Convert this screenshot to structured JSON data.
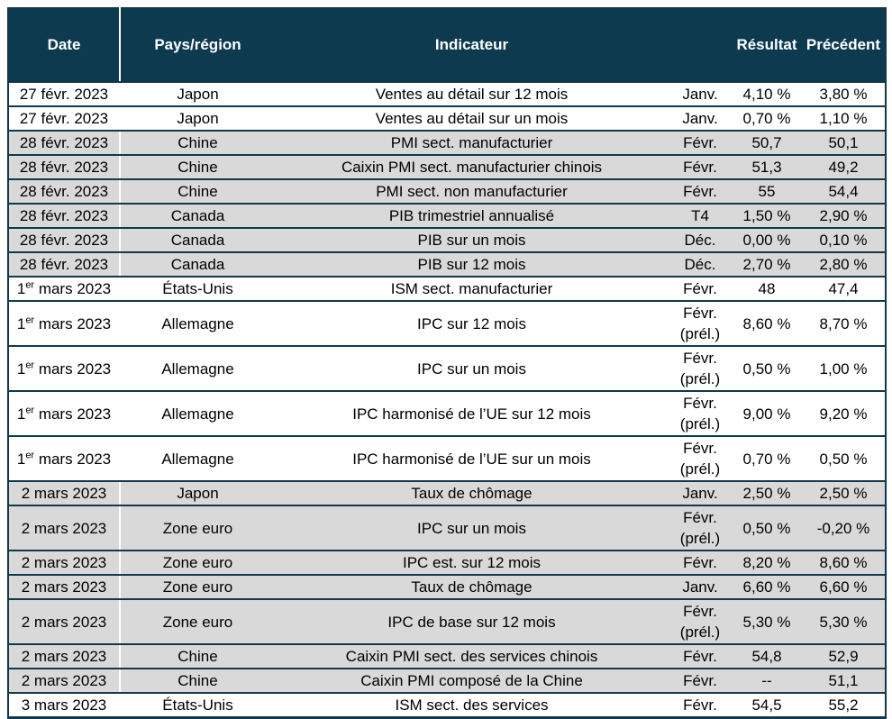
{
  "colors": {
    "header_bg": "#0e3a50",
    "grid_border": "#12384d",
    "row_shade_gray": "#d9d9d9",
    "row_shade_white": "#ffffff",
    "header_text": "#ffffff",
    "body_text": "#000000",
    "date_column_divider": "#ffffff"
  },
  "table": {
    "headers": {
      "date": "Date",
      "region": "Pays/région",
      "indicator": "Indicateur",
      "period": "",
      "result": "Résultat",
      "previous": "Précédent"
    },
    "rows": [
      {
        "date": "27 févr. 2023",
        "date_sup": "",
        "date_rest": "",
        "region": "Japon",
        "indicator": "Ventes au détail sur 12 mois",
        "period": "Janv.",
        "result": "4,10 %",
        "previous": "3,80 %",
        "shade": "white"
      },
      {
        "date": "27 févr. 2023",
        "date_sup": "",
        "date_rest": "",
        "region": "Japon",
        "indicator": "Ventes au détail sur un mois",
        "period": "Janv.",
        "result": "0,70 %",
        "previous": "1,10 %",
        "shade": "white"
      },
      {
        "date": "28 févr. 2023",
        "date_sup": "",
        "date_rest": "",
        "region": "Chine",
        "indicator": "PMI sect. manufacturier",
        "period": "Févr.",
        "result": "50,7",
        "previous": "50,1",
        "shade": "gray"
      },
      {
        "date": "28 févr. 2023",
        "date_sup": "",
        "date_rest": "",
        "region": "Chine",
        "indicator": "Caixin PMI sect. manufacturier chinois",
        "period": "Févr.",
        "result": "51,3",
        "previous": "49,2",
        "shade": "gray"
      },
      {
        "date": "28 févr. 2023",
        "date_sup": "",
        "date_rest": "",
        "region": "Chine",
        "indicator": "PMI sect. non manufacturier",
        "period": "Févr.",
        "result": "55",
        "previous": "54,4",
        "shade": "gray"
      },
      {
        "date": "28 févr. 2023",
        "date_sup": "",
        "date_rest": "",
        "region": "Canada",
        "indicator": "PIB trimestriel annualisé",
        "period": "T4",
        "result": "1,50 %",
        "previous": "2,90 %",
        "shade": "gray"
      },
      {
        "date": "28 févr. 2023",
        "date_sup": "",
        "date_rest": "",
        "region": "Canada",
        "indicator": "PIB sur un mois",
        "period": "Déc.",
        "result": "0,00 %",
        "previous": "0,10 %",
        "shade": "gray"
      },
      {
        "date": "28 févr. 2023",
        "date_sup": "",
        "date_rest": "",
        "region": "Canada",
        "indicator": "PIB sur 12 mois",
        "period": "Déc.",
        "result": "2,70 %",
        "previous": "2,80 %",
        "shade": "gray"
      },
      {
        "date": "1",
        "date_sup": "er",
        "date_rest": " mars 2023",
        "region": "États-Unis",
        "indicator": "ISM sect. manufacturier",
        "period": "Févr.",
        "result": "48",
        "previous": "47,4",
        "shade": "white"
      },
      {
        "date": "1",
        "date_sup": "er",
        "date_rest": " mars 2023",
        "region": "Allemagne",
        "indicator": "IPC sur 12 mois",
        "period": "Févr.\n(prél.)",
        "result": "8,60 %",
        "previous": "8,70 %",
        "shade": "white"
      },
      {
        "date": "1",
        "date_sup": "er",
        "date_rest": " mars 2023",
        "region": "Allemagne",
        "indicator": "IPC sur un mois",
        "period": "Févr.\n(prél.)",
        "result": "0,50 %",
        "previous": "1,00 %",
        "shade": "white"
      },
      {
        "date": "1",
        "date_sup": "er",
        "date_rest": " mars 2023",
        "region": "Allemagne",
        "indicator": "IPC harmonisé de l’UE sur 12 mois",
        "period": "Févr.\n(prél.)",
        "result": "9,00 %",
        "previous": "9,20 %",
        "shade": "white"
      },
      {
        "date": "1",
        "date_sup": "er",
        "date_rest": " mars 2023",
        "region": "Allemagne",
        "indicator": "IPC harmonisé de l’UE sur un mois",
        "period": "Févr.\n(prél.)",
        "result": "0,70 %",
        "previous": "0,50 %",
        "shade": "white"
      },
      {
        "date": "2 mars 2023",
        "date_sup": "",
        "date_rest": "",
        "region": "Japon",
        "indicator": "Taux de chômage",
        "period": "Janv.",
        "result": "2,50 %",
        "previous": "2,50 %",
        "shade": "gray"
      },
      {
        "date": "2 mars 2023",
        "date_sup": "",
        "date_rest": "",
        "region": "Zone euro",
        "indicator": "IPC sur un mois",
        "period": "Févr.\n(prél.)",
        "result": "0,50 %",
        "previous": "-0,20 %",
        "shade": "gray"
      },
      {
        "date": "2 mars 2023",
        "date_sup": "",
        "date_rest": "",
        "region": "Zone euro",
        "indicator": "IPC est. sur 12 mois",
        "period": "Févr.",
        "result": "8,20 %",
        "previous": "8,60 %",
        "shade": "gray"
      },
      {
        "date": "2 mars 2023",
        "date_sup": "",
        "date_rest": "",
        "region": "Zone euro",
        "indicator": "Taux de chômage",
        "period": "Janv.",
        "result": "6,60 %",
        "previous": "6,60 %",
        "shade": "gray"
      },
      {
        "date": "2 mars 2023",
        "date_sup": "",
        "date_rest": "",
        "region": "Zone euro",
        "indicator": "IPC de base sur 12 mois",
        "period": "Févr.\n(prél.)",
        "result": "5,30 %",
        "previous": "5,30 %",
        "shade": "gray"
      },
      {
        "date": "2 mars 2023",
        "date_sup": "",
        "date_rest": "",
        "region": "Chine",
        "indicator": "Caixin PMI sect. des services chinois",
        "period": "Févr.",
        "result": "54,8",
        "previous": "52,9",
        "shade": "gray"
      },
      {
        "date": "2 mars 2023",
        "date_sup": "",
        "date_rest": "",
        "region": "Chine",
        "indicator": "Caixin PMI composé de la Chine",
        "period": "Févr.",
        "result": "--",
        "previous": "51,1",
        "shade": "gray"
      },
      {
        "date": "3 mars 2023",
        "date_sup": "",
        "date_rest": "",
        "region": "États-Unis",
        "indicator": "ISM sect. des services",
        "period": "Févr.",
        "result": "54,5",
        "previous": "55,2",
        "shade": "white"
      }
    ]
  }
}
